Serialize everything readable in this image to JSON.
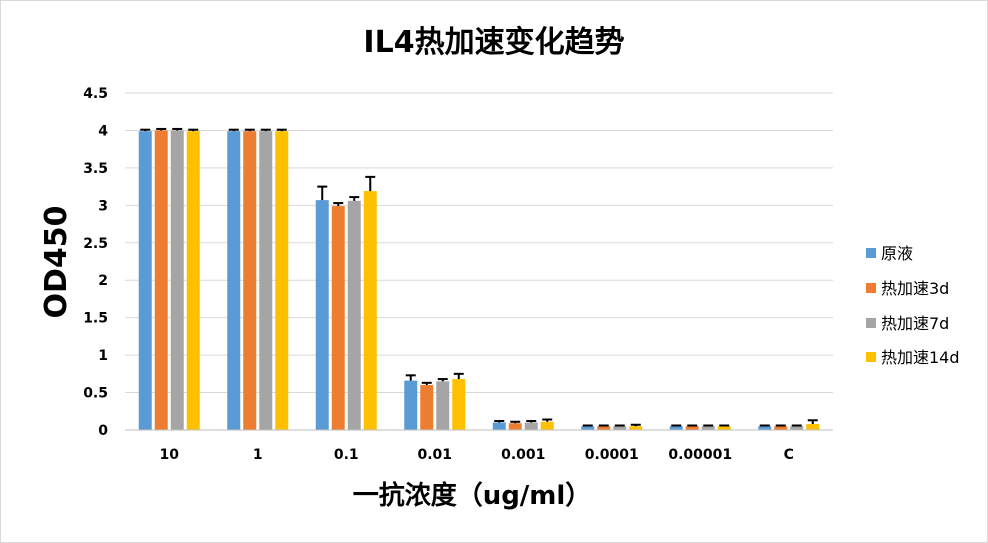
{
  "chart_data": {
    "type": "bar",
    "title": "IL4热加速变化趋势",
    "xlabel": "一抗浓度（ug/ml）",
    "ylabel": "OD450",
    "categories": [
      "10",
      "1",
      "0.1",
      "0.01",
      "0.001",
      "0.0001",
      "0.00001",
      "C"
    ],
    "ylim": [
      0,
      4.5
    ],
    "yticks": [
      "0",
      "0.5",
      "1",
      "1.5",
      "2",
      "2.5",
      "3",
      "3.5",
      "4",
      "4.5"
    ],
    "grid": true,
    "legend_position": "right",
    "series": [
      {
        "name": "原液",
        "color": "#5b9bd5",
        "values": [
          3.99,
          3.99,
          3.07,
          0.66,
          0.1,
          0.05,
          0.05,
          0.05
        ],
        "errors": [
          0.02,
          0.02,
          0.18,
          0.07,
          0.02,
          0.01,
          0.01,
          0.01
        ]
      },
      {
        "name": "热加速3d",
        "color": "#ed7d31",
        "values": [
          4.0,
          3.99,
          2.99,
          0.6,
          0.09,
          0.05,
          0.05,
          0.05
        ],
        "errors": [
          0.02,
          0.02,
          0.04,
          0.03,
          0.02,
          0.01,
          0.01,
          0.01
        ]
      },
      {
        "name": "热加速7d",
        "color": "#a5a5a5",
        "values": [
          4.0,
          3.99,
          3.06,
          0.65,
          0.1,
          0.05,
          0.05,
          0.05
        ],
        "errors": [
          0.02,
          0.02,
          0.05,
          0.03,
          0.02,
          0.01,
          0.01,
          0.01
        ]
      },
      {
        "name": "热加速14d",
        "color": "#ffc000",
        "values": [
          3.99,
          3.99,
          3.19,
          0.68,
          0.11,
          0.05,
          0.05,
          0.08
        ],
        "errors": [
          0.02,
          0.02,
          0.19,
          0.07,
          0.03,
          0.02,
          0.01,
          0.05
        ]
      }
    ]
  }
}
